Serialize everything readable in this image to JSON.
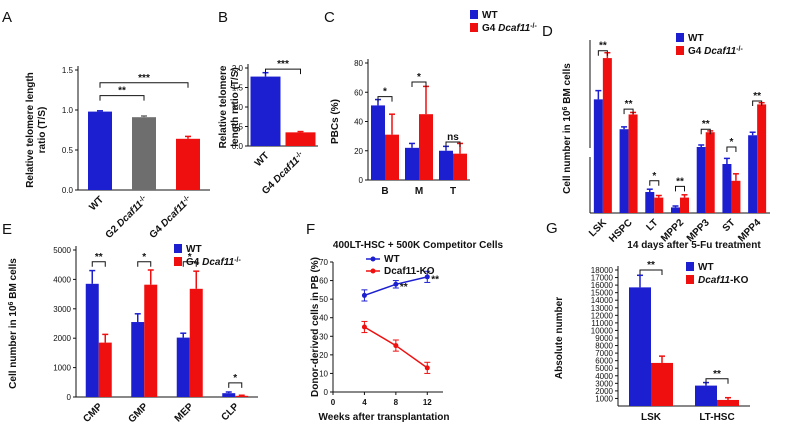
{
  "colors": {
    "blue": "#1c1fd0",
    "red": "#f00f0f",
    "grey": "#6e6e6e",
    "axis": "#111111"
  },
  "panels": [
    {
      "id": "A",
      "label": "A",
      "type": "bar",
      "ylabel": "Relative telomere length ratio (T/S)",
      "ylim": [
        0,
        1.5
      ],
      "yticks": [
        "0.0",
        "0.5",
        "1.0",
        "1.5"
      ],
      "categories": [
        "WT",
        "G2 Dcaf11-/-",
        "G4 Dcaf11-/-"
      ],
      "bars": [
        {
          "group": 0,
          "series": 0,
          "value": 0.98,
          "err": 0.01,
          "color": "blue"
        },
        {
          "group": 1,
          "series": 0,
          "value": 0.91,
          "err": 0.015,
          "color": "grey"
        },
        {
          "group": 2,
          "series": 0,
          "value": 0.64,
          "err": 0.03,
          "color": "red"
        }
      ],
      "sig": [
        {
          "from": 0,
          "to": 1,
          "y": 1.18,
          "text": "**"
        },
        {
          "from": 0,
          "to": 2,
          "y": 1.34,
          "text": "***"
        }
      ]
    },
    {
      "id": "B",
      "label": "B",
      "type": "bar",
      "ylabel": "Relative telomere length ratio (T/S)",
      "ylim": [
        0,
        2.0
      ],
      "yticks": [
        "0.0",
        "0.5",
        "1.0",
        "1.5",
        "2.0"
      ],
      "categories": [
        "WT",
        "G4 Dcaf11-/-"
      ],
      "bars": [
        {
          "group": 0,
          "series": 0,
          "value": 1.78,
          "err": 0.1,
          "color": "blue"
        },
        {
          "group": 1,
          "series": 0,
          "value": 0.35,
          "err": 0.02,
          "color": "red"
        }
      ],
      "sig": [
        {
          "from": 0,
          "to": 1,
          "y": 1.97,
          "text": "***"
        }
      ]
    },
    {
      "id": "C",
      "label": "C",
      "type": "bar",
      "ylabel": "PBCs (%)",
      "ylim": [
        0,
        80
      ],
      "yticks": [
        "0",
        "20",
        "40",
        "60",
        "80"
      ],
      "categories": [
        "B",
        "M",
        "T"
      ],
      "legend": [
        {
          "name": "WT",
          "color": "blue"
        },
        {
          "name": "G4 Dcaf11-/-",
          "color": "red"
        }
      ],
      "bars": [
        {
          "group": 0,
          "series": 0,
          "value": 51,
          "err": 4,
          "color": "blue"
        },
        {
          "group": 0,
          "series": 1,
          "value": 31,
          "err": 14,
          "color": "red"
        },
        {
          "group": 1,
          "series": 0,
          "value": 22,
          "err": 3,
          "color": "blue"
        },
        {
          "group": 1,
          "series": 1,
          "value": 45,
          "err": 19,
          "color": "red"
        },
        {
          "group": 2,
          "series": 0,
          "value": 20,
          "err": 3,
          "color": "blue"
        },
        {
          "group": 2,
          "series": 1,
          "value": 18,
          "err": 7,
          "color": "red"
        }
      ],
      "sig": [
        {
          "group": 0,
          "y": 57,
          "text": "*"
        },
        {
          "group": 1,
          "y": 67,
          "text": "*"
        },
        {
          "group": 2,
          "y": 26,
          "text": "ns"
        }
      ]
    },
    {
      "id": "D",
      "label": "D",
      "type": "bar",
      "ylabel": "Cell number in 10^6 BM cells",
      "ylim": [
        0,
        3500
      ],
      "yticks": [],
      "categories": [
        "LSK",
        "HSPC",
        "LT",
        "MPP2",
        "MPP3",
        "ST",
        "MPP4"
      ],
      "legend": [
        {
          "name": "WT",
          "color": "blue"
        },
        {
          "name": "G4 Dcaf11-/-",
          "color": "red"
        }
      ],
      "bars": [
        {
          "group": 0,
          "series": 0,
          "value": 1850,
          "err": 260,
          "color": "blue"
        },
        {
          "group": 0,
          "series": 1,
          "value": 3080,
          "err": 160,
          "color": "red"
        },
        {
          "group": 1,
          "series": 0,
          "value": 960,
          "err": 70,
          "color": "blue"
        },
        {
          "group": 1,
          "series": 1,
          "value": 1400,
          "err": 60,
          "color": "red"
        },
        {
          "group": 2,
          "series": 0,
          "value": 150,
          "err": 20,
          "color": "blue"
        },
        {
          "group": 2,
          "series": 1,
          "value": 110,
          "err": 15,
          "color": "red"
        },
        {
          "group": 3,
          "series": 0,
          "value": 40,
          "err": 10,
          "color": "blue"
        },
        {
          "group": 3,
          "series": 1,
          "value": 110,
          "err": 20,
          "color": "red"
        },
        {
          "group": 4,
          "series": 0,
          "value": 430,
          "err": 60,
          "color": "blue"
        },
        {
          "group": 4,
          "series": 1,
          "value": 870,
          "err": 40,
          "color": "red"
        },
        {
          "group": 5,
          "series": 0,
          "value": 350,
          "err": 40,
          "color": "blue"
        },
        {
          "group": 5,
          "series": 1,
          "value": 230,
          "err": 50,
          "color": "red"
        },
        {
          "group": 6,
          "series": 0,
          "value": 780,
          "err": 90,
          "color": "blue"
        },
        {
          "group": 6,
          "series": 1,
          "value": 1700,
          "err": 50,
          "color": "red"
        }
      ],
      "sig": [
        {
          "group": 0,
          "y": 3300,
          "text": "**"
        },
        {
          "group": 1,
          "y": 1560,
          "text": "**"
        },
        {
          "group": 2,
          "y": 230,
          "text": "*"
        },
        {
          "group": 3,
          "y": 190,
          "text": "**"
        },
        {
          "group": 4,
          "y": 960,
          "text": "**"
        },
        {
          "group": 5,
          "y": 430,
          "text": "*"
        },
        {
          "group": 6,
          "y": 1800,
          "text": "**"
        }
      ]
    },
    {
      "id": "E",
      "label": "E",
      "type": "bar",
      "ylabel": "Cell number in 10^6 BM cells",
      "ylim": [
        0,
        5000
      ],
      "yticks": [
        "0",
        "1000",
        "2000",
        "3000",
        "4000",
        "5000"
      ],
      "categories": [
        "CMP",
        "GMP",
        "MEP",
        "CLP"
      ],
      "legend": [
        {
          "name": "WT",
          "color": "blue"
        },
        {
          "name": "G4 Dcaf11-/-",
          "color": "red"
        }
      ],
      "bars": [
        {
          "group": 0,
          "series": 0,
          "value": 3850,
          "err": 450,
          "color": "blue"
        },
        {
          "group": 0,
          "series": 1,
          "value": 1850,
          "err": 280,
          "color": "red"
        },
        {
          "group": 1,
          "series": 0,
          "value": 2550,
          "err": 280,
          "color": "blue"
        },
        {
          "group": 1,
          "series": 1,
          "value": 3820,
          "err": 500,
          "color": "red"
        },
        {
          "group": 2,
          "series": 0,
          "value": 2020,
          "err": 150,
          "color": "blue"
        },
        {
          "group": 2,
          "series": 1,
          "value": 3680,
          "err": 600,
          "color": "red"
        },
        {
          "group": 3,
          "series": 0,
          "value": 130,
          "err": 40,
          "color": "blue"
        },
        {
          "group": 3,
          "series": 1,
          "value": 40,
          "err": 20,
          "color": "red"
        }
      ],
      "sig": [
        {
          "group": 0,
          "y": 4600,
          "text": "**"
        },
        {
          "group": 1,
          "y": 4600,
          "text": "*"
        },
        {
          "group": 2,
          "y": 4600,
          "text": "*"
        },
        {
          "group": 3,
          "y": 480,
          "text": "*"
        }
      ]
    },
    {
      "id": "F",
      "label": "F",
      "type": "line",
      "title": "400LT-HSC + 500K Competitor Cells",
      "xlabel": "Weeks after transplantation",
      "ylabel": "Donor-derived cells in PB (%)",
      "xlim": [
        0,
        14
      ],
      "xticks": [
        "0",
        "4",
        "8",
        "12"
      ],
      "ylim": [
        0,
        70
      ],
      "yticks": [
        "0",
        "10",
        "20",
        "30",
        "40",
        "50",
        "60",
        "70"
      ],
      "legend": [
        {
          "name": "WT",
          "color": "blue"
        },
        {
          "name": "Dcaf11-KO",
          "color": "red"
        }
      ],
      "series": [
        {
          "name": "WT",
          "color": "blue",
          "marker": "circle",
          "x": [
            4,
            8,
            12
          ],
          "y": [
            52,
            58,
            62
          ],
          "err": [
            3,
            2,
            3
          ]
        },
        {
          "name": "Dcaf11-KO",
          "color": "red",
          "marker": "circle",
          "x": [
            4,
            8,
            12
          ],
          "y": [
            35,
            25,
            13
          ],
          "err": [
            3,
            3,
            3
          ]
        }
      ],
      "annotations": [
        {
          "x": 8,
          "y": 55,
          "text": "**"
        },
        {
          "x": 12,
          "y": 59,
          "text": "**"
        }
      ]
    },
    {
      "id": "G",
      "label": "G",
      "type": "bar",
      "title": "14 days after 5-Fu treatment",
      "ylabel": "Absolute number",
      "ylim": [
        0,
        18000
      ],
      "yticks": [
        "1000",
        "2000",
        "3000",
        "4000",
        "5000",
        "6000",
        "7000",
        "8000",
        "9000",
        "10000",
        "11000",
        "12000",
        "13000",
        "14000",
        "15000",
        "16000",
        "17000",
        "18000"
      ],
      "categories": [
        "LSK",
        "LT-HSC"
      ],
      "legend": [
        {
          "name": "WT",
          "color": "blue"
        },
        {
          "name": "Dcaf11-KO",
          "color": "red"
        }
      ],
      "bars": [
        {
          "group": 0,
          "series": 0,
          "value": 15700,
          "err": 1600,
          "color": "blue"
        },
        {
          "group": 0,
          "series": 1,
          "value": 5700,
          "err": 900,
          "color": "red"
        },
        {
          "group": 1,
          "series": 0,
          "value": 2700,
          "err": 400,
          "color": "blue"
        },
        {
          "group": 1,
          "series": 1,
          "value": 800,
          "err": 300,
          "color": "red"
        }
      ],
      "sig": [
        {
          "group": 0,
          "y": 18000,
          "text": "**"
        },
        {
          "group": 1,
          "y": 3600,
          "text": "**"
        }
      ]
    }
  ]
}
